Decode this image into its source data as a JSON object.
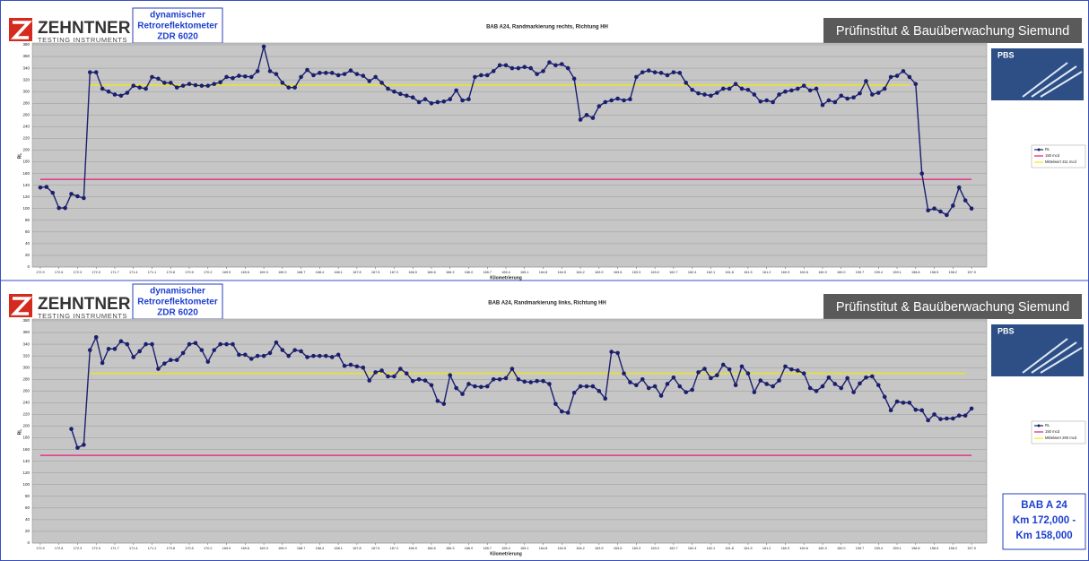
{
  "branding": {
    "logo": "ZEHNTNER",
    "logo_sub": "TESTING INSTRUMENTS",
    "device": [
      "dynamischer",
      "Retroreflektometer",
      "ZDR 6020"
    ],
    "banner": "Prüfinstitut & Bauüberwachung Siemund",
    "badge": "PBS"
  },
  "note": [
    "BAB A 24",
    "Km 172,000 -",
    "Km 158,000"
  ],
  "chart_data": [
    {
      "type": "line",
      "title": "BAB A24, Randmarkierung rechts, Richtung HH",
      "xlabel": "Kilometrierung",
      "ylabel": "RL",
      "grid": true,
      "xlim": [
        173.0,
        157.8
      ],
      "ylim": [
        0,
        380
      ],
      "yticks": [
        0,
        20,
        40,
        60,
        80,
        100,
        120,
        140,
        160,
        180,
        200,
        220,
        240,
        260,
        280,
        300,
        320,
        340,
        360,
        380
      ],
      "xticks": [
        172.9,
        172.6,
        172.3,
        {
          "value": 172,
          "label": "172.0"
        },
        171.7,
        171.4,
        171.1,
        170.8,
        170.5,
        170.2,
        169.9,
        169.6,
        169.3,
        {
          "value": 169,
          "label": "169.0"
        },
        168.7,
        168.4,
        168.1,
        167.8,
        167.5,
        167.2,
        166.9,
        166.6,
        166.3,
        {
          "value": 166,
          "label": "166.0"
        },
        165.7,
        165.4,
        165.1,
        164.8,
        164.5,
        164.2,
        163.9,
        163.6,
        163.3,
        {
          "value": 163,
          "label": "163.0"
        },
        162.7,
        162.4,
        162.1,
        161.8,
        161.5,
        161.2,
        160.9,
        160.6,
        160.3,
        {
          "value": 160,
          "label": "160.0"
        },
        159.7,
        159.4,
        159.1,
        158.8,
        158.5,
        158.2,
        157.9
      ],
      "x": [
        172.9,
        172.8,
        172.7,
        172.6,
        172.5,
        172.4,
        172.3,
        172.2,
        172.1,
        172.0,
        171.9,
        171.8,
        171.7,
        171.6,
        171.5,
        171.4,
        171.3,
        171.2,
        171.1,
        171.0,
        170.9,
        170.8,
        170.7,
        170.6,
        170.5,
        170.4,
        170.3,
        170.2,
        170.1,
        170.0,
        169.9,
        169.8,
        169.7,
        169.6,
        169.5,
        169.4,
        169.3,
        169.2,
        169.1,
        169.0,
        168.9,
        168.8,
        168.7,
        168.6,
        168.5,
        168.4,
        168.3,
        168.2,
        168.1,
        168.0,
        167.9,
        167.8,
        167.7,
        167.6,
        167.5,
        167.4,
        167.3,
        167.2,
        167.1,
        167.0,
        166.9,
        166.8,
        166.7,
        166.6,
        166.5,
        166.4,
        166.3,
        166.2,
        166.1,
        166.0,
        165.9,
        165.8,
        165.7,
        165.6,
        165.5,
        165.4,
        165.3,
        165.2,
        165.1,
        165.0,
        164.9,
        164.8,
        164.7,
        164.6,
        164.5,
        164.4,
        164.3,
        164.2,
        164.1,
        164.0,
        163.9,
        163.8,
        163.7,
        163.6,
        163.5,
        163.4,
        163.3,
        163.2,
        163.1,
        163.0,
        162.9,
        162.8,
        162.7,
        162.6,
        162.5,
        162.4,
        162.3,
        162.2,
        162.1,
        162.0,
        161.9,
        161.8,
        161.7,
        161.6,
        161.5,
        161.4,
        161.3,
        161.2,
        161.1,
        161.0,
        160.9,
        160.8,
        160.7,
        160.6,
        160.5,
        160.4,
        160.3,
        160.2,
        160.1,
        160.0,
        159.9,
        159.8,
        159.7,
        159.6,
        159.5,
        159.4,
        159.3,
        159.2,
        159.1,
        159.0,
        158.9,
        158.8,
        158.7,
        158.6,
        158.5,
        158.4,
        158.3,
        158.2,
        158.1,
        158.0,
        157.9
      ],
      "series": [
        {
          "name": "RL",
          "color": "#1b1f6e",
          "values": [
            136,
            137,
            127,
            101,
            101,
            125,
            121,
            118,
            333,
            333,
            305,
            300,
            295,
            293,
            298,
            310,
            307,
            305,
            325,
            322,
            315,
            315,
            307,
            310,
            313,
            311,
            310,
            310,
            313,
            316,
            325,
            323,
            327,
            326,
            325,
            335,
            377,
            335,
            330,
            315,
            307,
            307,
            325,
            337,
            328,
            332,
            332,
            332,
            328,
            330,
            336,
            330,
            327,
            318,
            325,
            315,
            305,
            300,
            296,
            293,
            290,
            282,
            287,
            280,
            282,
            283,
            287,
            302,
            285,
            287,
            325,
            328,
            328,
            335,
            345,
            345,
            340,
            340,
            342,
            340,
            330,
            335,
            350,
            345,
            347,
            340,
            322,
            252,
            260,
            255,
            275,
            282,
            285,
            288,
            285,
            287,
            325,
            333,
            336,
            333,
            332,
            328,
            333,
            332,
            315,
            303,
            297,
            295,
            293,
            298,
            305,
            305,
            313,
            305,
            303,
            295,
            283,
            285,
            282,
            295,
            300,
            302,
            305,
            310,
            302,
            305,
            277,
            285,
            282,
            293,
            288,
            290,
            297,
            318,
            295,
            298,
            305,
            325,
            327,
            335,
            325,
            313,
            160,
            97,
            100,
            95,
            89,
            105,
            136,
            114,
            100
          ]
        }
      ],
      "reference_lines": [
        {
          "name": "150 mcd",
          "value": 150,
          "color": "#e8187d",
          "x": [
            172.9,
            157.9
          ]
        },
        {
          "name": "Mittelwert 311 mcd",
          "value": 311,
          "color": "#f2ec00",
          "x": [
            172.1,
            158.9
          ]
        }
      ]
    },
    {
      "type": "line",
      "title": "BAB A24, Randmarkierung links, Richtung HH",
      "xlabel": "Kilometrierung",
      "ylabel": "RL",
      "grid": true,
      "xlim": [
        173.0,
        157.8
      ],
      "ylim": [
        0,
        380
      ],
      "yticks": [
        0,
        20,
        40,
        60,
        80,
        100,
        120,
        140,
        160,
        180,
        200,
        220,
        240,
        260,
        280,
        300,
        320,
        340,
        360,
        380
      ],
      "xticks": [
        172.9,
        172.6,
        172.3,
        {
          "value": 172,
          "label": "172.0"
        },
        171.7,
        171.4,
        171.1,
        170.8,
        170.5,
        170.2,
        169.9,
        169.6,
        169.3,
        {
          "value": 169,
          "label": "169.0"
        },
        168.7,
        168.4,
        168.1,
        167.8,
        167.5,
        167.2,
        166.9,
        166.6,
        166.3,
        {
          "value": 166,
          "label": "166.0"
        },
        165.7,
        165.4,
        165.1,
        164.8,
        164.5,
        164.2,
        163.9,
        163.6,
        163.3,
        {
          "value": 163,
          "label": "163.0"
        },
        162.7,
        162.4,
        162.1,
        161.8,
        161.5,
        161.2,
        160.9,
        160.6,
        160.3,
        {
          "value": 160,
          "label": "160.0"
        },
        159.7,
        159.4,
        159.1,
        158.8,
        158.5,
        158.2,
        157.9
      ],
      "x": [
        172.9,
        172.8,
        172.7,
        172.6,
        172.5,
        172.4,
        172.3,
        172.2,
        172.1,
        172.0,
        171.9,
        171.8,
        171.7,
        171.6,
        171.5,
        171.4,
        171.3,
        171.2,
        171.1,
        171.0,
        170.9,
        170.8,
        170.7,
        170.6,
        170.5,
        170.4,
        170.3,
        170.2,
        170.1,
        170.0,
        169.9,
        169.8,
        169.7,
        169.6,
        169.5,
        169.4,
        169.3,
        169.2,
        169.1,
        169.0,
        168.9,
        168.8,
        168.7,
        168.6,
        168.5,
        168.4,
        168.3,
        168.2,
        168.1,
        168.0,
        167.9,
        167.8,
        167.7,
        167.6,
        167.5,
        167.4,
        167.3,
        167.2,
        167.1,
        167.0,
        166.9,
        166.8,
        166.7,
        166.6,
        166.5,
        166.4,
        166.3,
        166.2,
        166.1,
        166.0,
        165.9,
        165.8,
        165.7,
        165.6,
        165.5,
        165.4,
        165.3,
        165.2,
        165.1,
        165.0,
        164.9,
        164.8,
        164.7,
        164.6,
        164.5,
        164.4,
        164.3,
        164.2,
        164.1,
        164.0,
        163.9,
        163.8,
        163.7,
        163.6,
        163.5,
        163.4,
        163.3,
        163.2,
        163.1,
        163.0,
        162.9,
        162.8,
        162.7,
        162.6,
        162.5,
        162.4,
        162.3,
        162.2,
        162.1,
        162.0,
        161.9,
        161.8,
        161.7,
        161.6,
        161.5,
        161.4,
        161.3,
        161.2,
        161.1,
        161.0,
        160.9,
        160.8,
        160.7,
        160.6,
        160.5,
        160.4,
        160.3,
        160.2,
        160.1,
        160.0,
        159.9,
        159.8,
        159.7,
        159.6,
        159.5,
        159.4,
        159.3,
        159.2,
        159.1,
        159.0,
        158.9,
        158.8,
        158.7,
        158.6,
        158.5,
        158.4,
        158.3,
        158.2,
        158.1,
        158.0,
        157.9
      ],
      "series": [
        {
          "name": "RL",
          "color": "#1b1f6e",
          "values": [
            null,
            null,
            null,
            null,
            null,
            195,
            163,
            168,
            330,
            352,
            308,
            332,
            332,
            345,
            340,
            318,
            328,
            340,
            340,
            298,
            307,
            313,
            313,
            325,
            340,
            342,
            330,
            310,
            330,
            340,
            340,
            340,
            322,
            322,
            315,
            320,
            320,
            325,
            343,
            330,
            320,
            330,
            328,
            318,
            320,
            320,
            320,
            318,
            322,
            303,
            305,
            302,
            300,
            278,
            292,
            295,
            285,
            285,
            298,
            290,
            277,
            280,
            278,
            270,
            243,
            238,
            287,
            265,
            255,
            272,
            268,
            267,
            268,
            280,
            280,
            282,
            298,
            280,
            276,
            275,
            277,
            277,
            272,
            238,
            225,
            223,
            257,
            268,
            268,
            268,
            260,
            247,
            327,
            325,
            290,
            275,
            270,
            280,
            265,
            268,
            252,
            272,
            283,
            268,
            258,
            262,
            292,
            298,
            282,
            287,
            305,
            297,
            270,
            302,
            290,
            258,
            278,
            272,
            268,
            278,
            302,
            297,
            295,
            290,
            265,
            260,
            268,
            283,
            272,
            265,
            282,
            258,
            273,
            283,
            285,
            270,
            250,
            227,
            242,
            240,
            240,
            228,
            227,
            210,
            220,
            212,
            213,
            213,
            218,
            218,
            230
          ]
        }
      ],
      "reference_lines": [
        {
          "name": "150 mcd",
          "value": 150,
          "color": "#e8187d",
          "x": [
            172.9,
            157.9
          ]
        },
        {
          "name": "Mittelwert 290 mcd",
          "value": 290,
          "color": "#f2ec00",
          "x": [
            172.1,
            158.0
          ]
        }
      ]
    }
  ]
}
